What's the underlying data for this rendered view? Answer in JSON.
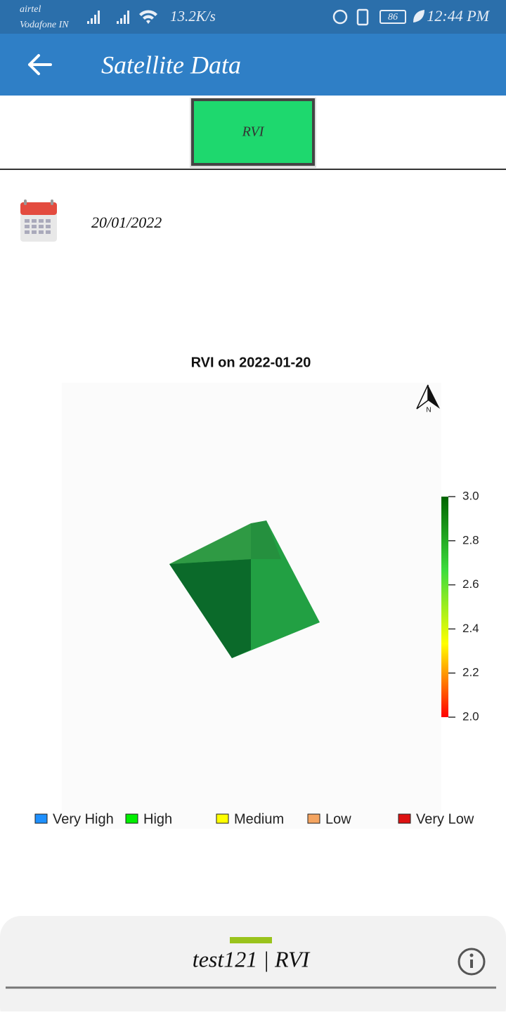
{
  "status_bar": {
    "carrier_1": "airtel",
    "carrier_2": "Vodafone IN",
    "speed": "13.2K/s",
    "battery": "86",
    "time": "12:44 PM"
  },
  "app_bar": {
    "title": "Satellite Data"
  },
  "tab": {
    "label": "RVI"
  },
  "date": "20/01/2022",
  "map": {
    "title": "RVI on  2022-01-20",
    "north_label": "N",
    "colorbar": {
      "ylim": [
        2,
        3
      ],
      "colors": [
        "#ff0000",
        "#ffff00",
        "#3ddc3d",
        "#006400"
      ],
      "ticks": [
        {
          "value": 3,
          "label": "3.0"
        },
        {
          "value": 2.8,
          "label": "2.8"
        },
        {
          "value": 2.6,
          "label": "2.6"
        },
        {
          "value": 2.4,
          "label": "2.4"
        },
        {
          "value": 2.2,
          "label": "2.2"
        },
        {
          "value": 2,
          "label": "2.0"
        }
      ]
    },
    "legend": [
      {
        "name": "Very High",
        "color": "#1e90ff"
      },
      {
        "name": "High",
        "color": "#00ee00"
      },
      {
        "name": "Medium",
        "color": "#ffff00"
      },
      {
        "name": "Low",
        "color": "#f4a460"
      },
      {
        "name": "Very Low",
        "color": "#dd1111"
      }
    ]
  },
  "bottom_sheet": {
    "title": "test121  |  RVI"
  }
}
